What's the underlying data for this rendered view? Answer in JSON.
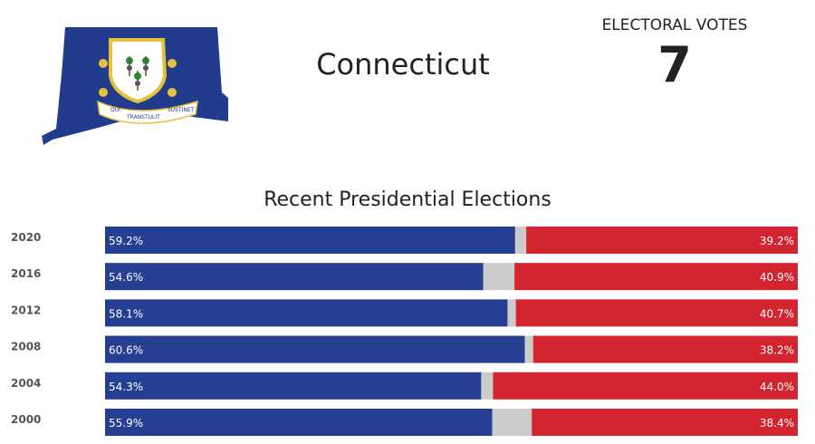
{
  "state": {
    "name": "Connecticut",
    "map_color": "#213c8d",
    "seal_motto_words": [
      "QUI",
      "TRANSTULIT",
      "SUSTINET"
    ]
  },
  "electoral": {
    "label": "ELECTORAL VOTES",
    "value": "7"
  },
  "colors": {
    "dem": "#253f92",
    "rep": "#d22530",
    "other": "#cccccc",
    "year_label": "#555555"
  },
  "chart_data": {
    "type": "bar",
    "stacked": true,
    "orientation": "horizontal",
    "title": "Recent Presidential Elections",
    "categories": [
      "2020",
      "2016",
      "2012",
      "2008",
      "2004",
      "2000"
    ],
    "series": [
      {
        "name": "",
        "party": "dem",
        "values": [
          59.2,
          54.6,
          58.1,
          60.6,
          54.3,
          55.9
        ]
      },
      {
        "name": "",
        "party": "other",
        "values": [
          1.6,
          4.5,
          1.2,
          1.2,
          1.7,
          5.7
        ]
      },
      {
        "name": "",
        "party": "rep",
        "values": [
          39.2,
          40.9,
          40.7,
          38.2,
          44.0,
          38.4
        ]
      }
    ],
    "labels": {
      "dem": [
        "59.2%",
        "54.6%",
        "58.1%",
        "60.6%",
        "54.3%",
        "55.9%"
      ],
      "rep": [
        "39.2%",
        "40.9%",
        "40.7%",
        "38.2%",
        "44.0%",
        "38.4%"
      ]
    },
    "xlim": [
      0,
      100
    ]
  }
}
